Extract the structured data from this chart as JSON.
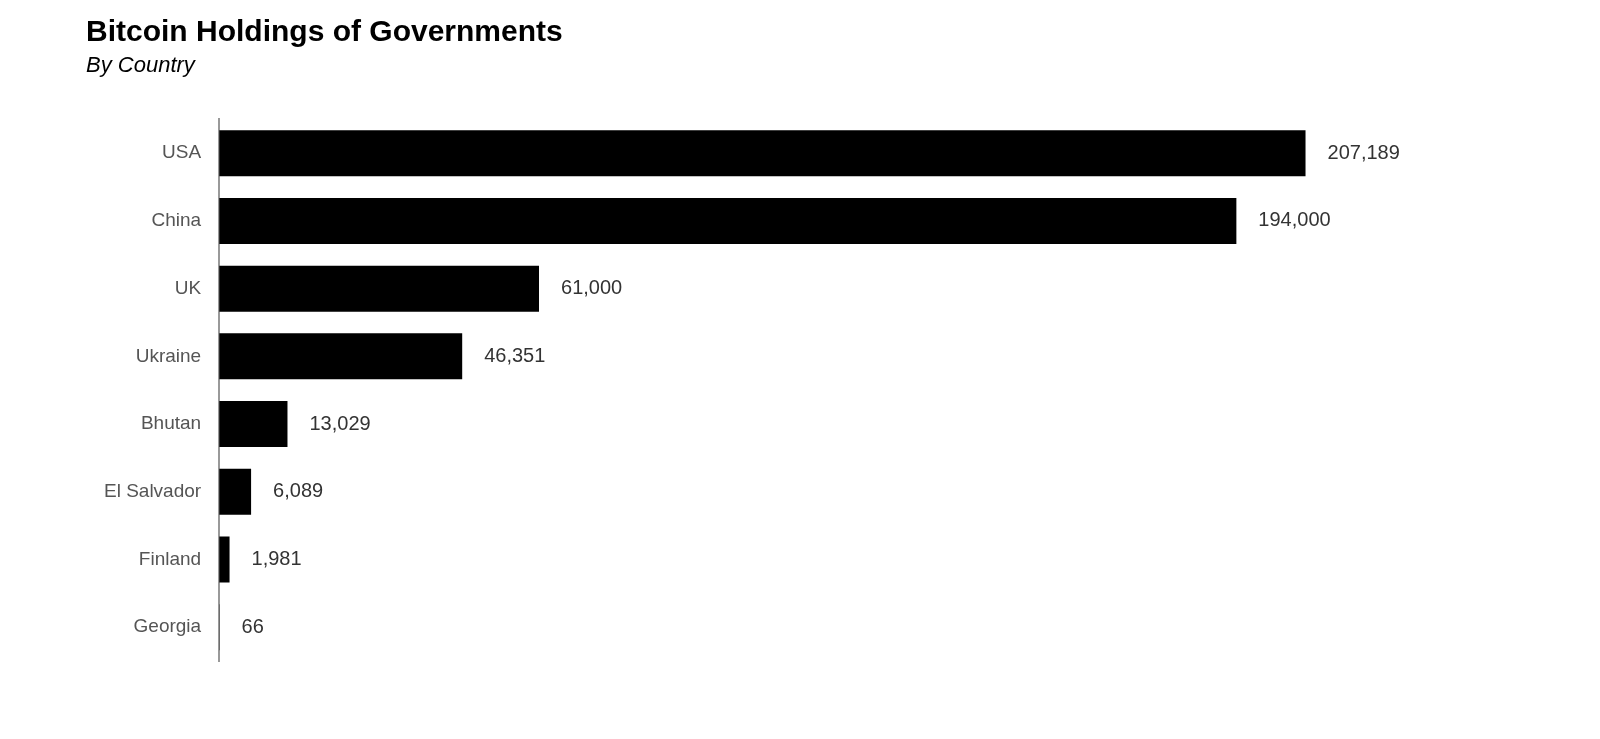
{
  "chart_data": {
    "type": "bar",
    "orientation": "horizontal",
    "title": "Bitcoin Holdings of Governments",
    "subtitle": "By Country",
    "categories": [
      "USA",
      "China",
      "UK",
      "Ukraine",
      "Bhutan",
      "El Salvador",
      "Finland",
      "Georgia"
    ],
    "values": [
      207189,
      194000,
      61000,
      46351,
      13029,
      6089,
      1981,
      66
    ],
    "value_labels": [
      "207,189",
      "194,000",
      "61,000",
      "46,351",
      "13,029",
      "6,089",
      "1,981",
      "66"
    ],
    "color": "#000000",
    "grid": false,
    "legend": false,
    "tick_labels": "y"
  }
}
